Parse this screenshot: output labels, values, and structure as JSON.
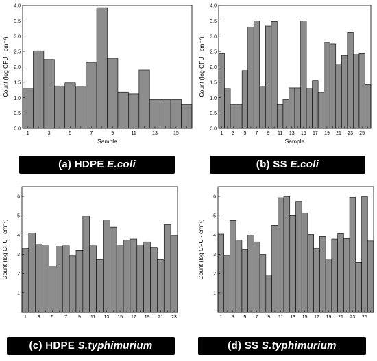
{
  "colors": {
    "bar": "#8c8c8c",
    "bar_edge": "#000000",
    "caption_bg": "#000000",
    "caption_text": "#ffffff"
  },
  "chart_data": [
    {
      "id": "a",
      "type": "bar",
      "caption_prefix": "(a) HDPE ",
      "caption_organism": "E.coli",
      "xlabel": "Sample",
      "ylabel": "Count (log CFU · cm⁻²)",
      "ylim": [
        0,
        4.0
      ],
      "yticks": [
        "0.0",
        "0.5",
        "1.0",
        "1.5",
        "2.0",
        "2.5",
        "3.0",
        "3.5",
        "4.0"
      ],
      "categories": [
        1,
        2,
        3,
        4,
        5,
        6,
        7,
        8,
        9,
        10,
        11,
        12,
        13,
        14,
        15,
        16
      ],
      "xtick_labels": [
        "1",
        "3",
        "5",
        "7",
        "9",
        "11",
        "13",
        "15"
      ],
      "values": [
        1.3,
        2.52,
        2.24,
        1.38,
        1.48,
        1.37,
        2.13,
        3.93,
        2.28,
        1.18,
        1.12,
        1.9,
        0.95,
        0.95,
        0.95,
        0.77
      ]
    },
    {
      "id": "b",
      "type": "bar",
      "caption_prefix": "(b) SS ",
      "caption_organism": "E.coli",
      "xlabel": "Sample",
      "ylabel": "Count (log CFU · cm⁻²)",
      "ylim": [
        0,
        4.0
      ],
      "yticks": [
        "0.0",
        "0.5",
        "1.0",
        "1.5",
        "2.0",
        "2.5",
        "3.0",
        "3.5",
        "4.0"
      ],
      "categories": [
        1,
        2,
        3,
        4,
        5,
        6,
        7,
        8,
        9,
        10,
        11,
        12,
        13,
        14,
        15,
        16,
        17,
        18,
        19,
        20,
        21,
        22,
        23,
        24,
        25,
        26
      ],
      "xtick_labels": [
        "1",
        "3",
        "5",
        "7",
        "9",
        "11",
        "13",
        "15",
        "17",
        "19",
        "21",
        "23",
        "25"
      ],
      "values": [
        2.45,
        1.3,
        0.78,
        0.78,
        1.88,
        3.3,
        3.5,
        1.37,
        3.33,
        3.48,
        0.78,
        0.95,
        1.32,
        1.32,
        3.5,
        1.3,
        1.55,
        1.17,
        2.8,
        2.75,
        2.08,
        2.38,
        3.12,
        2.42,
        2.45,
        1.42
      ]
    },
    {
      "id": "c",
      "type": "bar",
      "caption_prefix": "(c) HDPE ",
      "caption_organism": "S.typhimurium",
      "xlabel": "",
      "ylabel": "Count (log CFU · cm⁻²)",
      "ylim": [
        0,
        6.5
      ],
      "yticks": [
        "1",
        "2",
        "3",
        "4",
        "5",
        "6"
      ],
      "ytick_values": [
        1,
        2,
        3,
        4,
        5,
        6
      ],
      "categories": [
        1,
        2,
        3,
        4,
        5,
        6,
        7,
        8,
        9,
        10,
        11,
        12,
        13,
        14,
        15,
        16,
        17,
        18,
        19,
        20,
        21,
        22,
        23
      ],
      "xtick_labels": [
        "1",
        "3",
        "5",
        "7",
        "9",
        "11",
        "13",
        "15",
        "17",
        "19",
        "21",
        "23"
      ],
      "values": [
        3.28,
        4.1,
        3.53,
        3.45,
        2.4,
        3.42,
        3.45,
        2.92,
        3.22,
        4.98,
        3.45,
        2.73,
        4.77,
        4.4,
        3.45,
        3.75,
        3.8,
        3.45,
        3.65,
        3.35,
        2.73,
        4.53,
        3.98
      ]
    },
    {
      "id": "d",
      "type": "bar",
      "caption_prefix": "(d) SS ",
      "caption_organism": "S.typhimurium",
      "xlabel": "",
      "ylabel": "Count (log CFU · cm⁻²)",
      "ylim": [
        0,
        6.5
      ],
      "yticks": [
        "1",
        "2",
        "3",
        "4",
        "5",
        "6"
      ],
      "ytick_values": [
        1,
        2,
        3,
        4,
        5,
        6
      ],
      "categories": [
        1,
        2,
        3,
        4,
        5,
        6,
        7,
        8,
        9,
        10,
        11,
        12,
        13,
        14,
        15,
        16,
        17,
        18,
        19,
        20,
        21,
        22,
        23,
        24,
        25,
        26
      ],
      "xtick_labels": [
        "1",
        "3",
        "5",
        "7",
        "9",
        "11",
        "13",
        "15",
        "17",
        "19",
        "21",
        "23",
        "25"
      ],
      "values": [
        4.05,
        2.95,
        4.75,
        3.75,
        3.25,
        4.0,
        3.65,
        3.0,
        1.93,
        4.5,
        5.93,
        6.0,
        5.03,
        5.73,
        5.13,
        4.03,
        3.28,
        3.93,
        2.75,
        3.8,
        4.07,
        3.82,
        5.95,
        2.58,
        6.0,
        3.7
      ]
    }
  ]
}
